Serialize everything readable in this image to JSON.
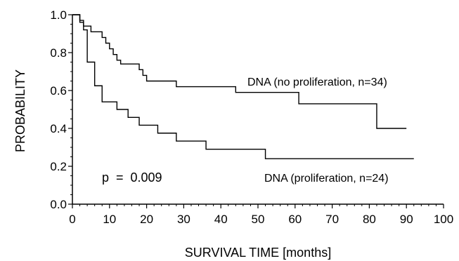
{
  "chart_data": {
    "type": "line",
    "xlabel": "SURVIVAL TIME [months]",
    "ylabel": "PROBABILITY",
    "xlim": [
      0,
      100
    ],
    "ylim": [
      0,
      1.0
    ],
    "xticks": [
      "0",
      "10",
      "20",
      "30",
      "40",
      "50",
      "60",
      "70",
      "80",
      "90",
      "100"
    ],
    "yticks": [
      "0.0",
      "0.2",
      "0.4",
      "0.6",
      "0.8",
      "1.0"
    ],
    "xtick_values": [
      0,
      10,
      20,
      30,
      40,
      50,
      60,
      70,
      80,
      90,
      100
    ],
    "ytick_values": [
      0,
      0.2,
      0.4,
      0.6,
      0.8,
      1.0
    ],
    "step": true,
    "grid": false,
    "series": [
      {
        "name": "DNA (no proliferation, n=34)",
        "x": [
          0,
          2,
          3,
          5,
          8,
          9,
          10,
          11,
          12,
          13,
          14,
          18,
          19,
          20,
          22,
          28,
          44,
          61,
          82,
          90
        ],
        "y": [
          1.0,
          0.97,
          0.94,
          0.91,
          0.88,
          0.85,
          0.82,
          0.79,
          0.76,
          0.74,
          0.74,
          0.71,
          0.68,
          0.65,
          0.65,
          0.62,
          0.59,
          0.53,
          0.4,
          0.4
        ]
      },
      {
        "name": "DNA (proliferation, n=24)",
        "x": [
          0,
          2,
          3,
          4,
          6,
          8,
          12,
          15,
          18,
          23,
          28,
          36,
          52,
          92
        ],
        "y": [
          1.0,
          0.96,
          0.92,
          0.75,
          0.625,
          0.54,
          0.5,
          0.458,
          0.417,
          0.375,
          0.333,
          0.29,
          0.24,
          0.24
        ]
      }
    ],
    "annotation": "p  =  0.009"
  }
}
